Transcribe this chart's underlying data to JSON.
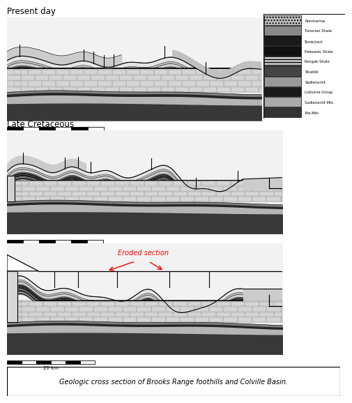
{
  "title_pd": "Present day",
  "title_lc": "Late Cretaceous",
  "caption": "Geologic cross section of Brooks Range foothills and Colville Basin.",
  "eroded_label": "Eroded section",
  "scale_label": "20 km",
  "bg_color": "#ffffff",
  "fig_width": 5.0,
  "fig_height": 5.79,
  "dpi": 100,
  "legend_entries": [
    {
      "label": "Nonmarine",
      "fc": "#c0c0c0",
      "hatch": "...."
    },
    {
      "label": "Turonian Shale",
      "fc": "#888888",
      "hatch": ""
    },
    {
      "label": "Torok/rock",
      "fc": "#1a1a1a",
      "hatch": ""
    },
    {
      "label": "Paleozoic Shale",
      "fc": "#111111",
      "hatch": ""
    },
    {
      "label": "Kongak Shale",
      "fc": "#cccccc",
      "hatch": "----"
    },
    {
      "label": "Shublik",
      "fc": "#444444",
      "hatch": ""
    },
    {
      "label": "Sadlerochit",
      "fc": "#999999",
      "hatch": ""
    },
    {
      "label": "Lisburne Group",
      "fc": "#222222",
      "hatch": ""
    },
    {
      "label": "Sadlerochit Mtn",
      "fc": "#aaaaaa",
      "hatch": ""
    },
    {
      "label": "Pre-Mtn",
      "fc": "#333333",
      "hatch": ""
    }
  ]
}
